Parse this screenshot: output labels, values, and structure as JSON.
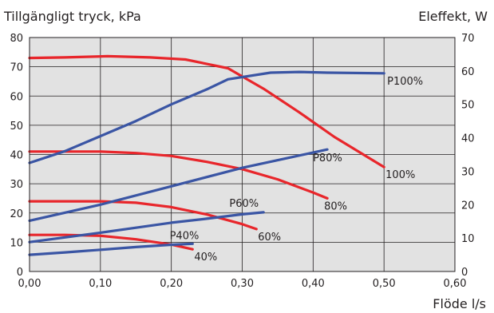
{
  "chart_data": {
    "type": "line",
    "title_left": "Tillgängligt tryck, kPa",
    "title_right": "Eleffekt, W",
    "xlabel": "Flöde l/s",
    "xlim": [
      0,
      0.6
    ],
    "ylim_left": [
      0,
      80
    ],
    "ylim_right": [
      0,
      70
    ],
    "x_ticks": [
      "0,00",
      "0,10",
      "0,20",
      "0,30",
      "0,40",
      "0,50",
      "0,60"
    ],
    "y_left_ticks": [
      "0",
      "10",
      "20",
      "30",
      "40",
      "50",
      "60",
      "70",
      "80"
    ],
    "y_right_ticks": [
      "0",
      "10",
      "20",
      "30",
      "40",
      "50",
      "60",
      "70"
    ],
    "grid": true,
    "colors": {
      "pressure": "#e8262b",
      "power": "#3a55a4",
      "plot_bg": "#e2e2e2",
      "grid": "#231f20"
    },
    "pressure_series": [
      {
        "name": "100%",
        "axis": "left",
        "x": [
          0.0,
          0.05,
          0.11,
          0.17,
          0.22,
          0.28,
          0.33,
          0.38,
          0.43,
          0.5
        ],
        "y": [
          73,
          73.2,
          73.6,
          73.2,
          72.5,
          69.5,
          62.5,
          54.5,
          46,
          35.7
        ]
      },
      {
        "name": "80%",
        "axis": "left",
        "x": [
          0.0,
          0.05,
          0.1,
          0.15,
          0.2,
          0.25,
          0.3,
          0.35,
          0.4,
          0.42
        ],
        "y": [
          41,
          41,
          41,
          40.5,
          39.5,
          37.5,
          35,
          31.5,
          27,
          25
        ]
      },
      {
        "name": "60%",
        "axis": "left",
        "x": [
          0.0,
          0.05,
          0.1,
          0.15,
          0.2,
          0.25,
          0.3,
          0.32
        ],
        "y": [
          24,
          24,
          24,
          23.5,
          22,
          19.5,
          16.2,
          14.5
        ]
      },
      {
        "name": "40%",
        "axis": "left",
        "x": [
          0.0,
          0.05,
          0.1,
          0.15,
          0.2,
          0.23
        ],
        "y": [
          12.5,
          12.5,
          12.2,
          11,
          9.2,
          7.6
        ]
      }
    ],
    "power_series": [
      {
        "name": "P100%",
        "axis": "right",
        "x": [
          0.0,
          0.05,
          0.1,
          0.15,
          0.2,
          0.25,
          0.28,
          0.34,
          0.38,
          0.42,
          0.5
        ],
        "y": [
          32.5,
          36,
          40.5,
          45,
          50,
          54.5,
          57.5,
          59.5,
          59.7,
          59.5,
          59.3
        ]
      },
      {
        "name": "P80%",
        "axis": "right",
        "x": [
          0.0,
          0.1,
          0.2,
          0.3,
          0.42
        ],
        "y": [
          15.2,
          20,
          25.5,
          31,
          36.5
        ]
      },
      {
        "name": "P60%",
        "axis": "right",
        "x": [
          0.0,
          0.05,
          0.1,
          0.15,
          0.2,
          0.25,
          0.3,
          0.33
        ],
        "y": [
          8.8,
          10.2,
          11.6,
          13.1,
          14.6,
          15.8,
          17.1,
          17.7
        ]
      },
      {
        "name": "P40%",
        "axis": "right",
        "x": [
          0.0,
          0.05,
          0.1,
          0.15,
          0.2,
          0.23
        ],
        "y": [
          5,
          5.7,
          6.5,
          7.3,
          8,
          8.3
        ]
      }
    ]
  }
}
